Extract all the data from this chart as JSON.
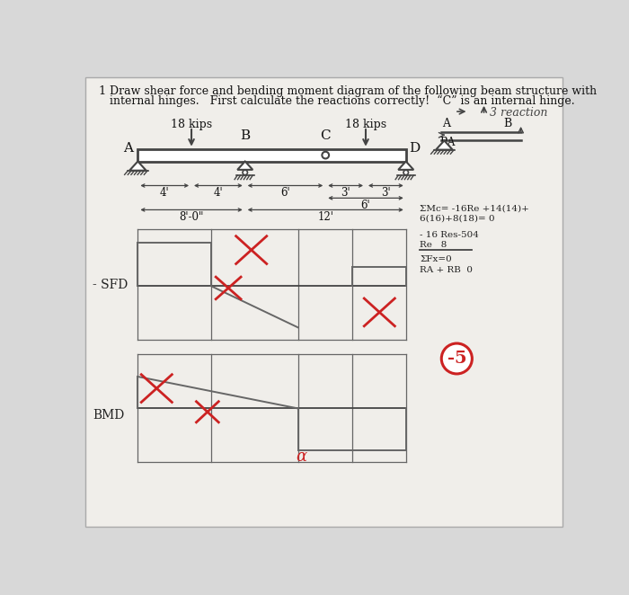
{
  "bg_color": "#d8d8d8",
  "paper_color": "#f0eeea",
  "line_color": "#444444",
  "pencil_color": "#666666",
  "red_color": "#cc2222",
  "title1": "1   Draw shear force and bending moment diagram of the following beam structure with",
  "title2": "     internal hinges.   First calculate the reactions correctly!  “C” is an internal hinge.",
  "load1_label": "18 kips",
  "load2_label": "18 kips",
  "label_A": "A",
  "label_B": "B",
  "label_C": "C",
  "label_D": "D",
  "sfd_label": "- SFD",
  "bmd_label": "BMD",
  "right_note": "3 reaction",
  "eq1": "ΣMc= -16Re +14(14)+",
  "eq2": "6(16)+8(18)= 0",
  "eq3": "- 16 Res-504",
  "eq4": "Re   8",
  "eq5": "ΣFx=0",
  "eq6": "RA + RB  0",
  "circled": "-5",
  "dim1": "4'",
  "dim2": "4'",
  "dim3": "6'",
  "dim4": "3'",
  "dim5": "3'",
  "dim6": "6'",
  "dim7": "8'-0\"",
  "dim8": "12'"
}
